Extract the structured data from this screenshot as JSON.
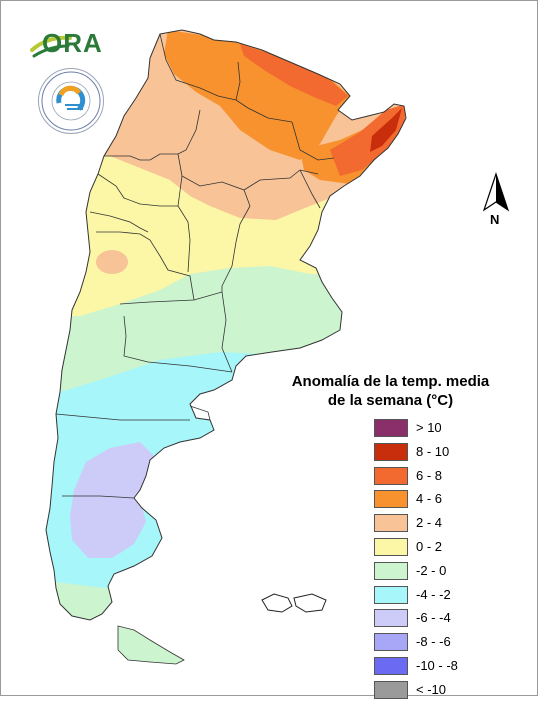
{
  "branding": {
    "logo_text": "ORA",
    "seal_text": "SERVICIO METEOROLÓGICO NACIONAL ARGENTINA"
  },
  "north_arrow": {
    "label": "N"
  },
  "legend": {
    "title_line1": "Anomalía de la temp. media",
    "title_line2": "de la semana (°C)",
    "items": [
      {
        "label": "> 10",
        "color": "#8b2f6b"
      },
      {
        "label": "8 - 10",
        "color": "#c82e0c"
      },
      {
        "label": "6 - 8",
        "color": "#f26a2f"
      },
      {
        "label": "4 - 6",
        "color": "#f7922f"
      },
      {
        "label": "2 - 4",
        "color": "#f7c397"
      },
      {
        "label": "0 - 2",
        "color": "#fbf7a6"
      },
      {
        "label": "-2 - 0",
        "color": "#ccf4cf"
      },
      {
        "label": "-4 - -2",
        "color": "#a6f6fa"
      },
      {
        "label": "-6 - -4",
        "color": "#cdccf8"
      },
      {
        "label": "-8 - -6",
        "color": "#a8a6f7"
      },
      {
        "label": "-10 - -8",
        "color": "#6a6af2"
      },
      {
        "label": "< -10",
        "color": "#9a9a9a"
      }
    ]
  },
  "map_zones": [
    {
      "band": "6 - 8",
      "region": "Misiones"
    },
    {
      "band": "8 - 10",
      "region": "Misiones northeast tip"
    },
    {
      "band": "4 - 6",
      "region": "Formosa / Chaco / Corrientes north"
    },
    {
      "band": "2 - 4",
      "region": "Northwest and Litoral"
    },
    {
      "band": "0 - 2",
      "region": "Cuyo and Pampa"
    },
    {
      "band": "-2 - 0",
      "region": "Northern Patagonia"
    },
    {
      "band": "-4 - -2",
      "region": "Central Patagonia"
    },
    {
      "band": "-6 - -4",
      "region": "Santa Cruz interior"
    }
  ]
}
